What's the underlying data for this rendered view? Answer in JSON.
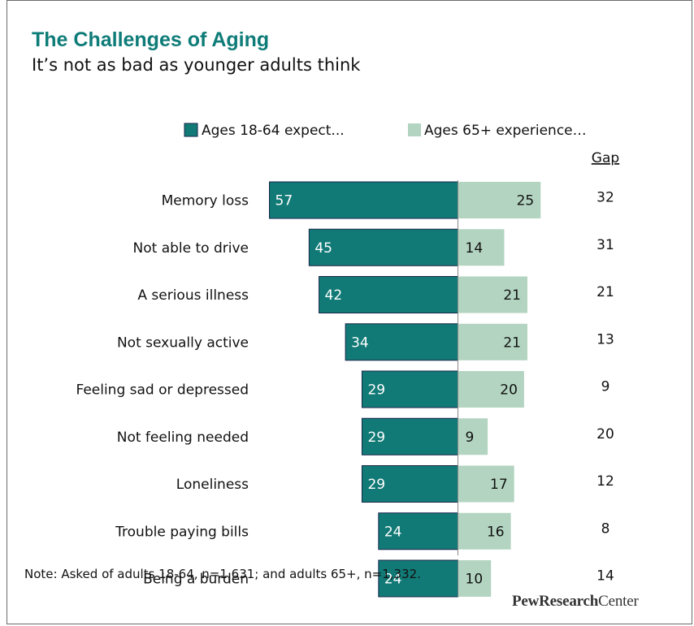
{
  "header": {
    "title": "The Challenges of Aging",
    "subtitle": "It’s not as bad as younger adults think"
  },
  "colors": {
    "expect": "#127a76",
    "experience": "#b2d4c0",
    "title": "#0e7c78"
  },
  "chart_data": {
    "type": "bar",
    "orientation": "horizontal-diverging",
    "categories": [
      "Memory loss",
      "Not able to drive",
      "A serious illness",
      "Not sexually active",
      "Feeling sad or depressed",
      "Not feeling needed",
      "Loneliness",
      "Trouble paying bills",
      "Being a burden"
    ],
    "series": [
      {
        "name": "Ages 18-64 expect...",
        "values": [
          57,
          45,
          42,
          34,
          29,
          29,
          29,
          24,
          24
        ]
      },
      {
        "name": "Ages 65+ experience…",
        "values": [
          25,
          14,
          21,
          21,
          20,
          9,
          17,
          16,
          10
        ]
      }
    ],
    "gap": {
      "label": "Gap",
      "values": [
        32,
        31,
        21,
        13,
        9,
        20,
        12,
        8,
        14
      ]
    },
    "legend": "top-right",
    "grid": false
  },
  "footer": {
    "note": "Note: Asked of adults 18-64, n=1,631; and adults 65+, n=1,332.",
    "logo_bold": "PewResearch",
    "logo_rest": "Center"
  }
}
